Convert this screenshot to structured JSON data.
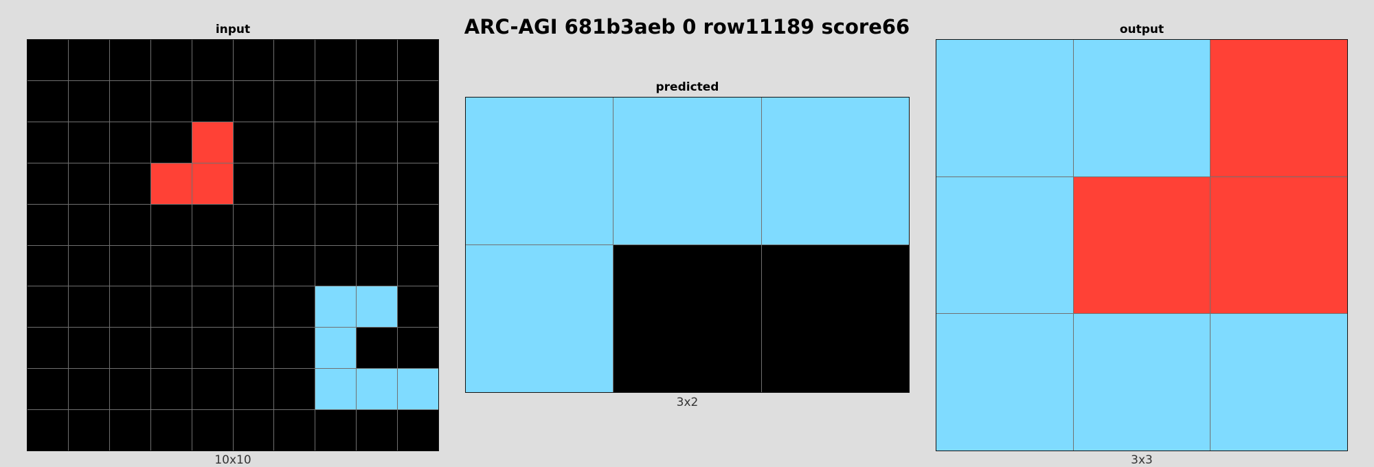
{
  "title": "ARC-AGI 681b3aeb 0 row11189 score66",
  "palette": {
    "0": "#000000",
    "2": "#ff4136",
    "8": "#7fdbff"
  },
  "panels": {
    "input": {
      "label": "input",
      "dims": "10x10",
      "grid": [
        [
          0,
          0,
          0,
          0,
          0,
          0,
          0,
          0,
          0,
          0
        ],
        [
          0,
          0,
          0,
          0,
          0,
          0,
          0,
          0,
          0,
          0
        ],
        [
          0,
          0,
          0,
          0,
          2,
          0,
          0,
          0,
          0,
          0
        ],
        [
          0,
          0,
          0,
          2,
          2,
          0,
          0,
          0,
          0,
          0
        ],
        [
          0,
          0,
          0,
          0,
          0,
          0,
          0,
          0,
          0,
          0
        ],
        [
          0,
          0,
          0,
          0,
          0,
          0,
          0,
          0,
          0,
          0
        ],
        [
          0,
          0,
          0,
          0,
          0,
          0,
          0,
          8,
          8,
          0
        ],
        [
          0,
          0,
          0,
          0,
          0,
          0,
          0,
          8,
          0,
          0
        ],
        [
          0,
          0,
          0,
          0,
          0,
          0,
          0,
          8,
          8,
          8
        ],
        [
          0,
          0,
          0,
          0,
          0,
          0,
          0,
          0,
          0,
          0
        ]
      ]
    },
    "predicted": {
      "label": "predicted",
      "dims": "3x2",
      "grid": [
        [
          8,
          8,
          8
        ],
        [
          8,
          0,
          0
        ]
      ]
    },
    "output": {
      "label": "output",
      "dims": "3x3",
      "grid": [
        [
          8,
          8,
          2
        ],
        [
          8,
          2,
          2
        ],
        [
          8,
          8,
          8
        ]
      ]
    }
  }
}
